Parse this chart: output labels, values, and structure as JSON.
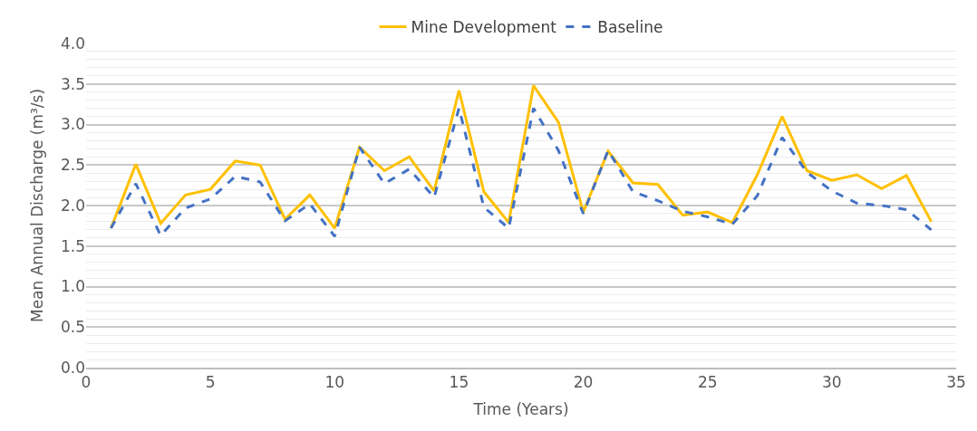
{
  "chart_data": {
    "type": "line",
    "xlabel": "Time (Years)",
    "ylabel": "Mean Annual Discharge (m³/s)",
    "x": [
      1,
      2,
      3,
      4,
      5,
      6,
      7,
      8,
      9,
      10,
      11,
      12,
      13,
      14,
      15,
      16,
      17,
      18,
      19,
      20,
      21,
      22,
      23,
      24,
      25,
      26,
      27,
      28,
      29,
      30,
      31,
      32,
      33,
      34
    ],
    "series": [
      {
        "name": "Mine Development",
        "color": "#ffc000",
        "line_style": "solid",
        "values": [
          1.72,
          2.51,
          1.78,
          2.13,
          2.2,
          2.55,
          2.5,
          1.83,
          2.13,
          1.72,
          2.72,
          2.43,
          2.6,
          2.18,
          3.42,
          2.17,
          1.79,
          3.48,
          3.03,
          1.92,
          2.67,
          2.28,
          2.26,
          1.88,
          1.92,
          1.79,
          2.38,
          3.1,
          2.43,
          2.31,
          2.38,
          2.21,
          2.37,
          1.8
        ]
      },
      {
        "name": "Baseline",
        "color": "#4472c4",
        "line_style": "dashed",
        "values": [
          1.72,
          2.27,
          1.63,
          1.97,
          2.08,
          2.36,
          2.29,
          1.81,
          2.02,
          1.62,
          2.72,
          2.27,
          2.45,
          2.1,
          3.2,
          1.98,
          1.72,
          3.2,
          2.68,
          1.9,
          2.68,
          2.17,
          2.06,
          1.93,
          1.86,
          1.77,
          2.12,
          2.84,
          2.41,
          2.18,
          2.03,
          2.0,
          1.95,
          1.7
        ]
      }
    ],
    "xlim": [
      0,
      35
    ],
    "xticks": [
      0,
      5,
      10,
      15,
      20,
      25,
      30,
      35
    ],
    "ylim": [
      0,
      4
    ],
    "yticks": [
      {
        "value": 0,
        "label": "0.0"
      },
      {
        "value": 0.5,
        "label": "0.5"
      },
      {
        "value": 1,
        "label": "1.0"
      },
      {
        "value": 1.5,
        "label": "1.5"
      },
      {
        "value": 2,
        "label": "2.0"
      },
      {
        "value": 2.5,
        "label": "2.5"
      },
      {
        "value": 3,
        "label": "3.0"
      },
      {
        "value": 3.5,
        "label": "3.5"
      },
      {
        "value": 4,
        "label": "4.0"
      }
    ],
    "grid": "y",
    "legend": "top",
    "marker": "none"
  }
}
